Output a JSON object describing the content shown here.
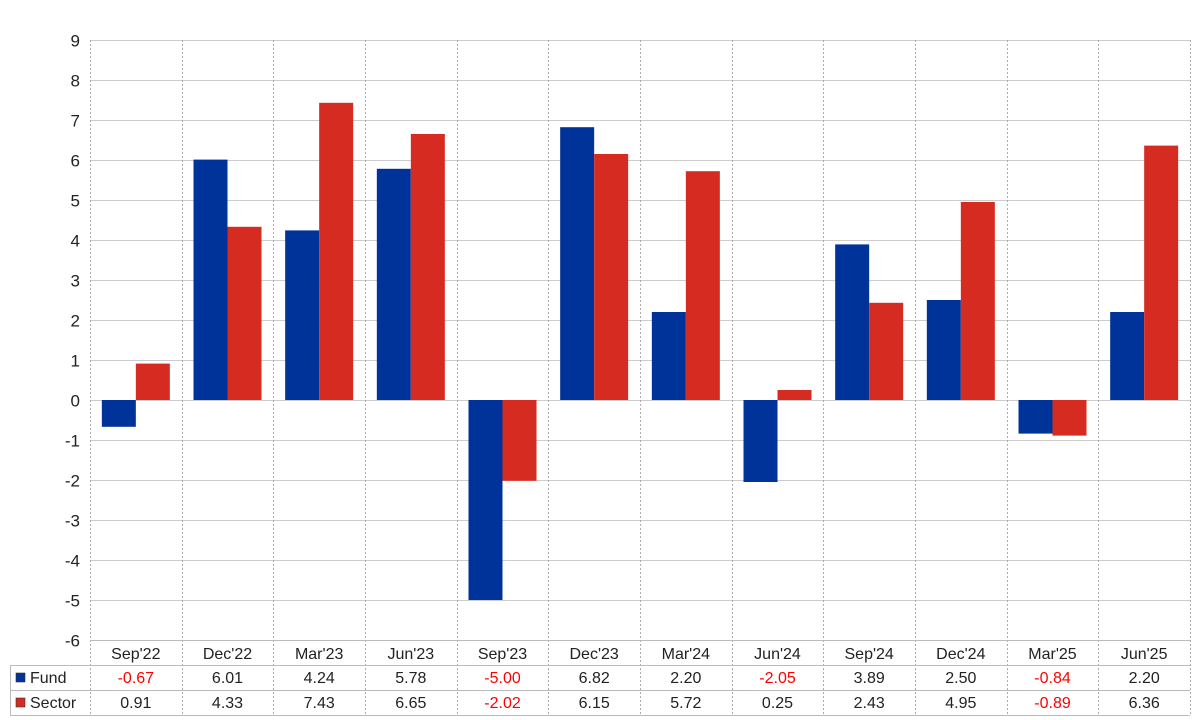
{
  "chart_data": {
    "type": "bar",
    "categories": [
      "Sep'22",
      "Dec'22",
      "Mar'23",
      "Jun'23",
      "Sep'23",
      "Dec'23",
      "Mar'24",
      "Jun'24",
      "Sep'24",
      "Dec'24",
      "Mar'25",
      "Jun'25"
    ],
    "series": [
      {
        "name": "Fund",
        "color": "#003399",
        "values": [
          -0.67,
          6.01,
          4.24,
          5.78,
          -5.0,
          6.82,
          2.2,
          -2.05,
          3.89,
          2.5,
          -0.84,
          2.2
        ],
        "labels": [
          "-0.67",
          "6.01",
          "4.24",
          "5.78",
          "-5.00",
          "6.82",
          "2.20",
          "-2.05",
          "3.89",
          "2.50",
          "-0.84",
          "2.20"
        ]
      },
      {
        "name": "Sector",
        "color": "#d62b20",
        "values": [
          0.91,
          4.33,
          7.43,
          6.65,
          -2.02,
          6.15,
          5.72,
          0.25,
          2.43,
          4.95,
          -0.89,
          6.36
        ],
        "labels": [
          "0.91",
          "4.33",
          "7.43",
          "6.65",
          "-2.02",
          "6.15",
          "5.72",
          "0.25",
          "2.43",
          "4.95",
          "-0.89",
          "6.36"
        ]
      }
    ],
    "ylim": [
      -6,
      9
    ],
    "yticks": [
      "9",
      "8",
      "7",
      "6",
      "5",
      "4",
      "3",
      "2",
      "1",
      "0",
      "-1",
      "-2",
      "-3",
      "-4",
      "-5",
      "-6"
    ],
    "title": "",
    "xlabel": "",
    "ylabel": "",
    "grid": true,
    "legend": "table-below",
    "negative_label_color": "#ff0000",
    "positive_label_color": "#222222"
  }
}
